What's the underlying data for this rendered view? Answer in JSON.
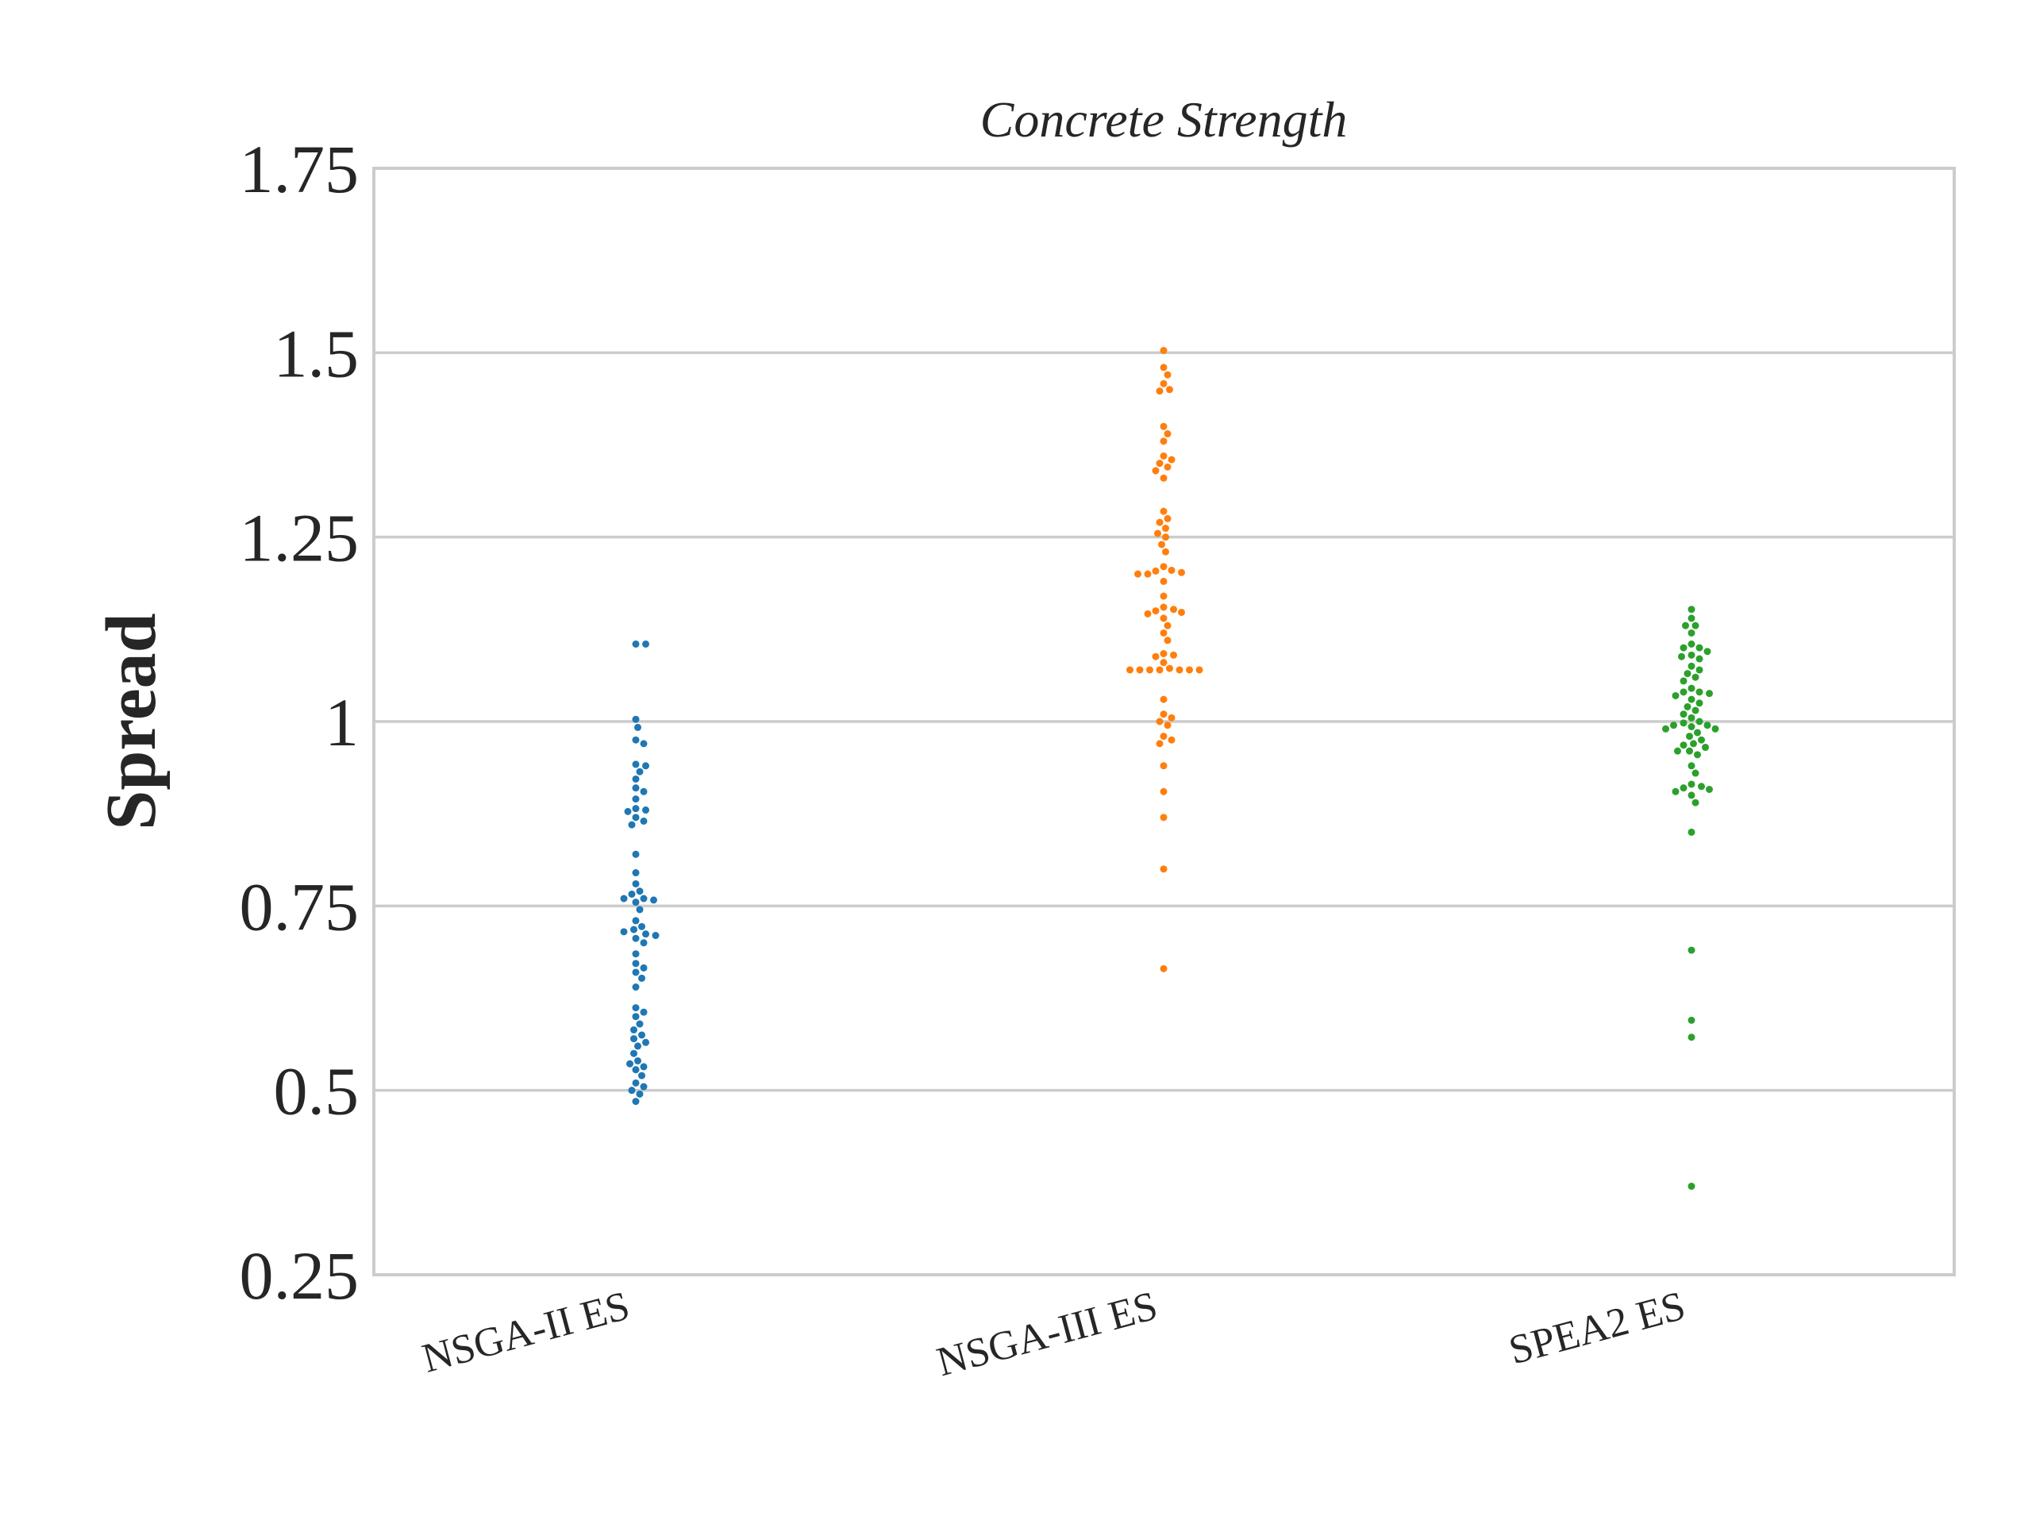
{
  "chart_data": {
    "type": "scatter",
    "subtype": "swarm",
    "title": "Concrete Strength",
    "xlabel": "",
    "ylabel": "Spread",
    "ylim": [
      0.25,
      1.75
    ],
    "yticks": [
      0.25,
      0.5,
      0.75,
      1,
      1.25,
      1.5,
      1.75
    ],
    "ytick_labels": [
      "0.25",
      "0.5",
      "0.75",
      "1",
      "1.25",
      "1.5",
      "1.75"
    ],
    "grid": "horizontal",
    "legend": "none",
    "categories": [
      "NSGA-II ES",
      "NSGA-III ES",
      "SPEA2 ES"
    ],
    "colors": [
      "#1f77b4",
      "#ff7f0e",
      "#2ca02c"
    ],
    "series": [
      {
        "category": "NSGA-II ES",
        "values": [
          1.105,
          1.105,
          1.003,
          0.992,
          0.975,
          0.97,
          0.942,
          0.94,
          0.932,
          0.922,
          0.91,
          0.905,
          0.895,
          0.882,
          0.88,
          0.878,
          0.87,
          0.865,
          0.86,
          0.82,
          0.795,
          0.78,
          0.77,
          0.766,
          0.76,
          0.76,
          0.758,
          0.755,
          0.745,
          0.73,
          0.722,
          0.718,
          0.715,
          0.712,
          0.71,
          0.706,
          0.7,
          0.685,
          0.672,
          0.666,
          0.66,
          0.652,
          0.64,
          0.612,
          0.606,
          0.6,
          0.59,
          0.582,
          0.575,
          0.57,
          0.565,
          0.56,
          0.55,
          0.54,
          0.536,
          0.532,
          0.528,
          0.52,
          0.51,
          0.505,
          0.5,
          0.495,
          0.485
        ]
      },
      {
        "category": "NSGA-III ES",
        "values": [
          1.503,
          1.48,
          1.47,
          1.458,
          1.45,
          1.448,
          1.4,
          1.39,
          1.38,
          1.36,
          1.355,
          1.35,
          1.345,
          1.34,
          1.33,
          1.285,
          1.275,
          1.27,
          1.262,
          1.255,
          1.25,
          1.24,
          1.23,
          1.21,
          1.205,
          1.204,
          1.202,
          1.2,
          1.2,
          1.19,
          1.17,
          1.155,
          1.152,
          1.15,
          1.148,
          1.146,
          1.14,
          1.13,
          1.12,
          1.11,
          1.092,
          1.09,
          1.088,
          1.08,
          1.072,
          1.07,
          1.07,
          1.07,
          1.07,
          1.07,
          1.07,
          1.07,
          1.03,
          1.01,
          1.005,
          1.0,
          0.995,
          0.98,
          0.975,
          0.97,
          0.94,
          0.905,
          0.87,
          0.8,
          0.665
        ]
      },
      {
        "category": "SPEA2 ES",
        "values": [
          1.152,
          1.14,
          1.13,
          1.13,
          1.12,
          1.105,
          1.1,
          1.1,
          1.095,
          1.09,
          1.088,
          1.085,
          1.075,
          1.07,
          1.065,
          1.06,
          1.055,
          1.045,
          1.04,
          1.04,
          1.038,
          1.035,
          1.03,
          1.025,
          1.02,
          1.015,
          1.01,
          1.005,
          1.0,
          0.998,
          0.995,
          0.995,
          0.993,
          0.99,
          0.99,
          0.985,
          0.98,
          0.975,
          0.97,
          0.968,
          0.965,
          0.96,
          0.96,
          0.955,
          0.94,
          0.93,
          0.915,
          0.912,
          0.91,
          0.908,
          0.905,
          0.9,
          0.89,
          0.85,
          0.69,
          0.595,
          0.572,
          0.37
        ]
      }
    ]
  }
}
